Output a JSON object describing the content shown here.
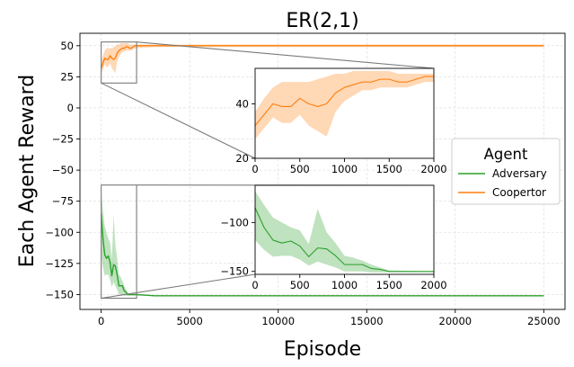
{
  "chart_data": {
    "type": "line",
    "title": "ER(2,1)",
    "xlabel": "Episode",
    "ylabel": "Each Agent Reward",
    "xlim": [
      -1200,
      26200
    ],
    "ylim": [
      -162,
      60
    ],
    "xticks": [
      0,
      5000,
      10000,
      15000,
      20000,
      25000
    ],
    "yticks": [
      50,
      25,
      0,
      -25,
      -50,
      -75,
      -100,
      -125,
      -150
    ],
    "grid": true,
    "legend": {
      "title": "Agent",
      "placement": "center-right"
    },
    "series": [
      {
        "name": "Adversary",
        "color": "#2ca02c",
        "x": [
          0,
          100,
          200,
          300,
          400,
          500,
          600,
          700,
          800,
          900,
          1000,
          1100,
          1200,
          1300,
          1400,
          1500,
          2000,
          3000,
          5000,
          10000,
          15000,
          20000,
          25000
        ],
        "y": [
          -85,
          -105,
          -118,
          -121,
          -119,
          -124,
          -135,
          -126,
          -127,
          -134,
          -143,
          -143,
          -143,
          -147,
          -148,
          -150,
          -150,
          -151,
          -151,
          -151,
          -151,
          -151,
          -151
        ],
        "lower": [
          -118,
          -128,
          -135,
          -134,
          -134,
          -138,
          -144,
          -140,
          -143,
          -146,
          -150,
          -150,
          -150,
          -151,
          -151,
          -151,
          -151,
          -151,
          -151,
          -151,
          -151,
          -151,
          -151
        ],
        "upper": [
          -68,
          -82,
          -95,
          -100,
          -105,
          -108,
          -122,
          -86,
          -110,
          -121,
          -134,
          -136,
          -139,
          -143,
          -146,
          -149,
          -150,
          -151,
          -151,
          -151,
          -151,
          -151,
          -151
        ]
      },
      {
        "name": "Coopertor",
        "color": "#ff7f0e",
        "x": [
          0,
          100,
          200,
          300,
          400,
          500,
          600,
          700,
          800,
          900,
          1000,
          1100,
          1200,
          1300,
          1400,
          1500,
          1600,
          1700,
          1800,
          1900,
          2000,
          3000,
          5000,
          10000,
          15000,
          20000,
          25000
        ],
        "y": [
          32,
          36,
          40,
          39,
          39,
          42,
          40,
          39,
          40,
          44,
          46,
          47,
          48,
          48,
          49,
          49,
          48,
          48,
          49,
          50,
          50,
          50,
          50,
          50,
          50,
          50,
          50
        ],
        "lower": [
          27,
          31,
          35,
          33,
          33,
          36,
          32,
          30,
          28,
          37,
          41,
          43,
          45,
          45,
          46,
          46,
          46,
          46,
          47,
          48,
          48,
          49,
          49,
          49,
          49,
          49,
          49
        ],
        "upper": [
          37,
          42,
          46,
          48,
          48,
          48,
          48,
          49,
          50,
          51,
          51,
          52,
          52,
          52,
          52,
          52,
          51,
          51,
          51,
          51,
          51,
          51,
          51,
          51,
          51,
          51,
          51
        ]
      }
    ],
    "insets": [
      {
        "name": "Coopertor",
        "xlim": [
          0,
          2000
        ],
        "ylim": [
          20,
          53
        ],
        "xticks": [
          0,
          500,
          1000,
          1500,
          2000
        ],
        "yticks": [
          40,
          20
        ]
      },
      {
        "name": "Adversary",
        "xlim": [
          0,
          2000
        ],
        "ylim": [
          -153,
          -62
        ],
        "xticks": [
          0,
          500,
          1000,
          1500,
          2000
        ],
        "yticks": [
          -100,
          -150
        ]
      }
    ]
  }
}
